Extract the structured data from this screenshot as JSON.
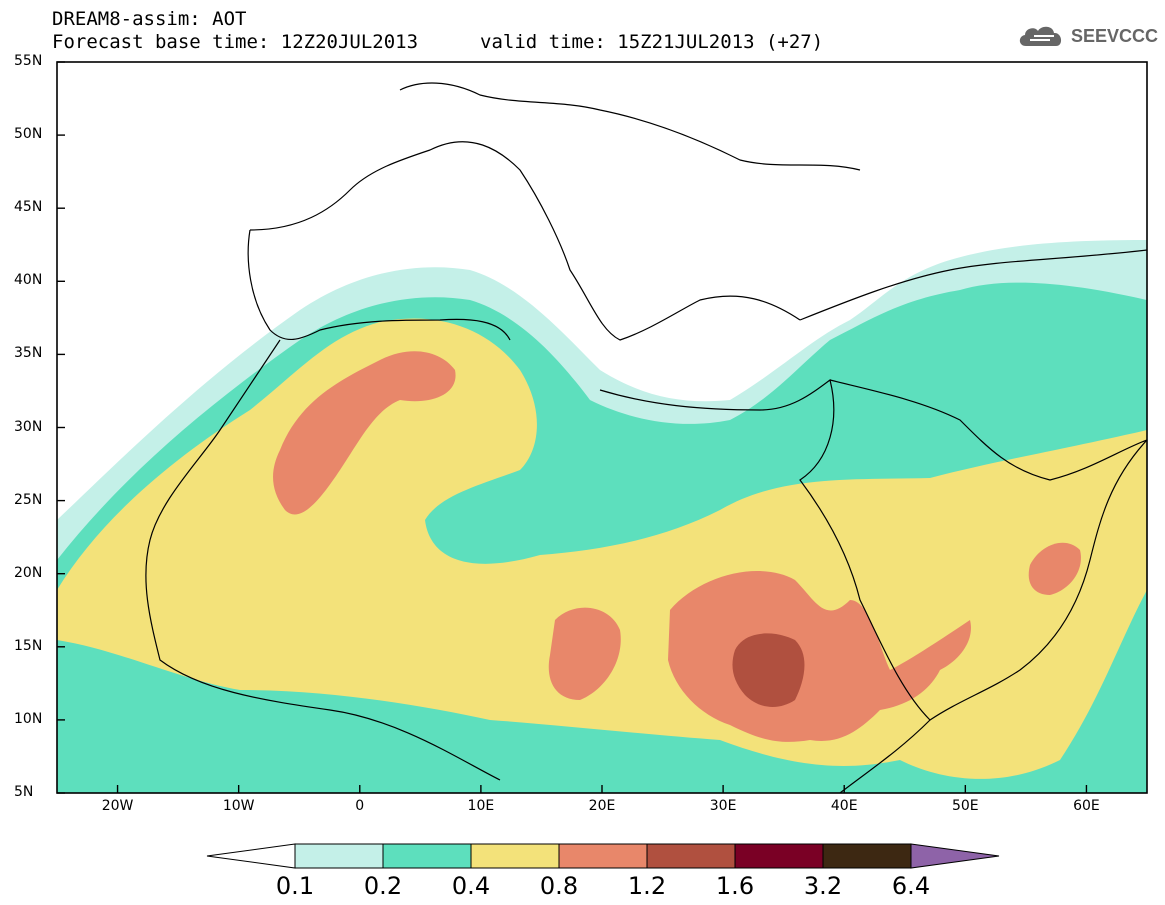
{
  "header": {
    "title": "DREAM8-assim: AOT",
    "base_time": "Forecast base time: 12Z20JUL2013",
    "valid_time": "valid time: 15Z21JUL2013 (+27)",
    "logo_text": "SEEVCCC"
  },
  "axes": {
    "lat_labels": [
      "55N",
      "50N",
      "45N",
      "40N",
      "35N",
      "30N",
      "25N",
      "20N",
      "15N",
      "10N",
      "5N"
    ],
    "lon_labels": [
      "20W",
      "10W",
      "0",
      "10E",
      "20E",
      "30E",
      "40E",
      "50E",
      "60E"
    ],
    "lon_range": [
      -25,
      65
    ],
    "lat_range": [
      5,
      55
    ]
  },
  "colorbar": {
    "labels": [
      "0.1",
      "0.2",
      "0.4",
      "0.8",
      "1.2",
      "1.6",
      "3.2",
      "6.4"
    ],
    "colors": [
      "#ffffff",
      "#c4f0e8",
      "#5ddfbd",
      "#f3e27a",
      "#e8876a",
      "#b0503f",
      "#7a0025",
      "#3d2812",
      "#8e63a8"
    ]
  },
  "chart_data": {
    "type": "heatmap",
    "variable": "AOT",
    "thresholds": [
      0.1,
      0.2,
      0.4,
      0.8,
      1.2,
      1.6,
      3.2,
      6.4
    ]
  }
}
